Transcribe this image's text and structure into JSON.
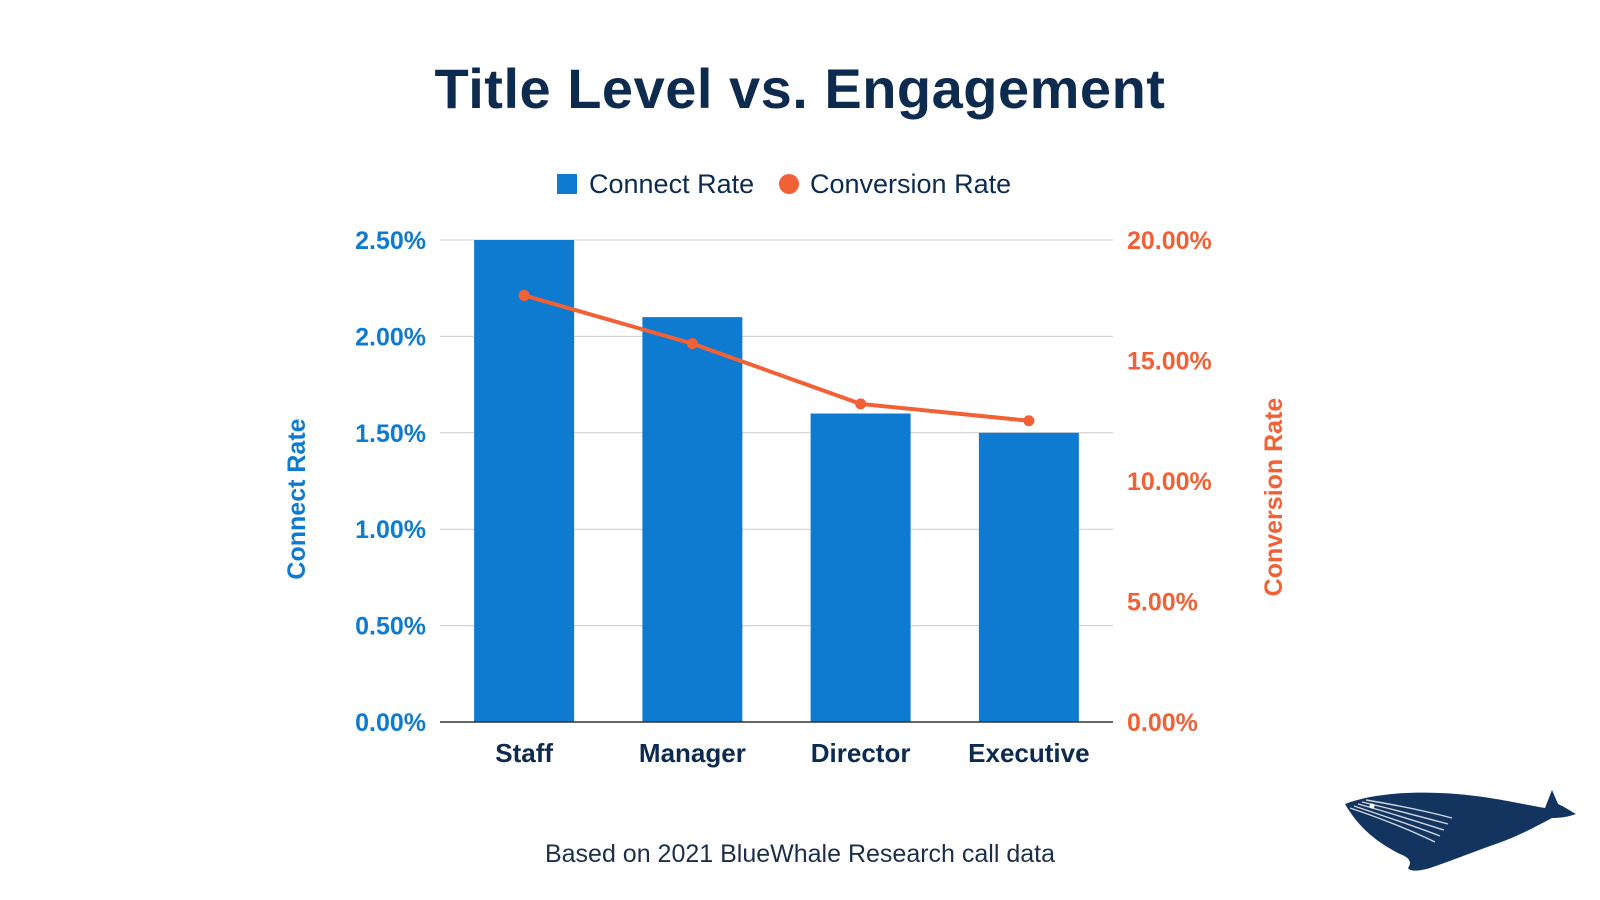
{
  "title": "Title Level vs. Engagement",
  "footnote": "Based on 2021 BlueWhale Research call data",
  "colors": {
    "bar": "#0e7bd0",
    "line": "#f26035",
    "category_text": "#0d2b4e",
    "grid": "#cccccc",
    "logo": "#12345f"
  },
  "chart_data": {
    "type": "bar",
    "categories": [
      "Staff",
      "Manager",
      "Director",
      "Executive"
    ],
    "series": [
      {
        "name": "Connect Rate",
        "type": "bar",
        "axis": "left",
        "values": [
          2.5,
          2.1,
          1.6,
          1.5
        ]
      },
      {
        "name": "Conversion Rate",
        "type": "line",
        "axis": "right",
        "values": [
          17.7,
          15.7,
          13.2,
          12.5
        ]
      }
    ],
    "y_left": {
      "label": "Connect Rate",
      "ylim": [
        0,
        2.5
      ],
      "ticks": [
        "0.00%",
        "0.50%",
        "1.00%",
        "1.50%",
        "2.00%",
        "2.50%"
      ]
    },
    "y_right": {
      "label": "Conversion Rate",
      "ylim": [
        0,
        20
      ],
      "ticks": [
        "0.00%",
        "5.00%",
        "10.00%",
        "15.00%",
        "20.00%"
      ]
    },
    "legend": {
      "position": "top-center",
      "entries": [
        "Connect Rate",
        "Conversion Rate"
      ]
    },
    "grid": true
  }
}
